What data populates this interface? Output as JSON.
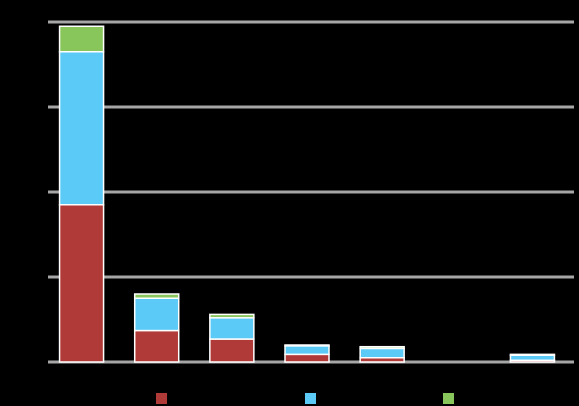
{
  "chart_data": {
    "type": "bar",
    "stacked": true,
    "title": "",
    "xlabel": "",
    "ylabel": "",
    "y_ticks": [
      "",
      "",
      "",
      "",
      ""
    ],
    "ylim": [
      0,
      400
    ],
    "grid": true,
    "legend_placement": "bottom",
    "categories": [
      "",
      "",
      "",
      "",
      "",
      "",
      ""
    ],
    "series": [
      {
        "name": "",
        "color": "#b03a38",
        "values": [
          185,
          37,
          27,
          9,
          5,
          0,
          2
        ]
      },
      {
        "name": "",
        "color": "#5ccaf7",
        "values": [
          180,
          38,
          25,
          10,
          11,
          0,
          6
        ]
      },
      {
        "name": "",
        "color": "#88c65b",
        "values": [
          30,
          5,
          4,
          1,
          2,
          0,
          1
        ]
      }
    ]
  }
}
